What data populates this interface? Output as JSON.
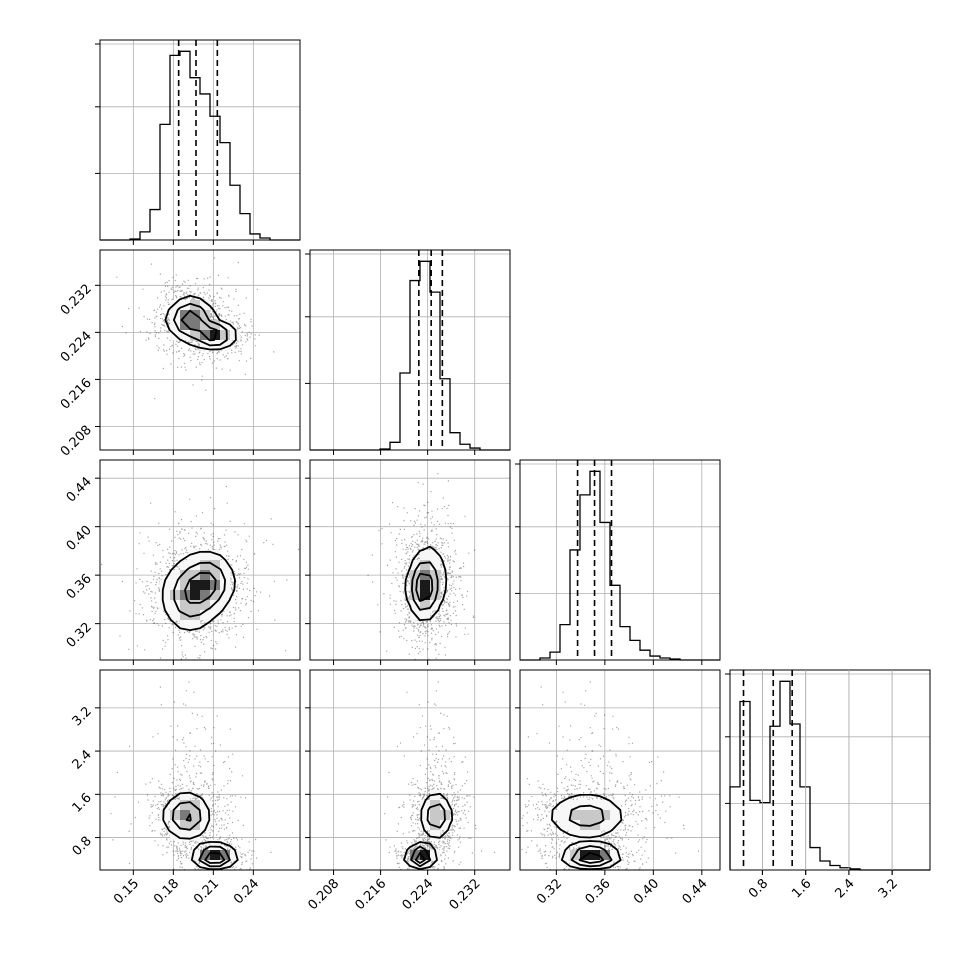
{
  "chart_data": {
    "type": "corner",
    "grid": true,
    "parameters": [
      {
        "range": [
          0.125,
          0.275
        ],
        "ticks": [
          0.15,
          0.18,
          0.21,
          0.24
        ],
        "tick_labels": [
          "0.15",
          "0.18",
          "0.21",
          "0.24"
        ]
      },
      {
        "range": [
          0.204,
          0.238
        ],
        "ticks": [
          0.208,
          0.216,
          0.224,
          0.232
        ],
        "tick_labels": [
          "0.208",
          "0.216",
          "0.224",
          "0.232"
        ]
      },
      {
        "range": [
          0.29,
          0.455
        ],
        "ticks": [
          0.32,
          0.36,
          0.4,
          0.44
        ],
        "tick_labels": [
          "0.32",
          "0.36",
          "0.40",
          "0.44"
        ]
      },
      {
        "range": [
          0.2,
          3.9
        ],
        "ticks": [
          0.8,
          1.6,
          2.4,
          3.2
        ],
        "tick_labels": [
          "0.8",
          "1.6",
          "2.4",
          "3.2"
        ]
      }
    ],
    "histograms": [
      {
        "param": 0,
        "bin_edges": [
          0.125,
          0.1325,
          0.14,
          0.1475,
          0.155,
          0.1625,
          0.17,
          0.1775,
          0.185,
          0.1925,
          0.2,
          0.2075,
          0.215,
          0.2225,
          0.23,
          0.2375,
          0.245,
          0.2525,
          0.26,
          0.2675,
          0.275
        ],
        "counts": [
          0,
          0,
          0,
          0.5,
          4,
          15,
          57,
          91,
          93,
          80,
          72,
          61,
          48,
          27,
          13,
          3,
          1,
          0,
          0,
          0
        ],
        "quantiles": [
          0.184,
          0.197,
          0.213
        ]
      },
      {
        "param": 1,
        "bin_edges": [
          0.204,
          0.2057,
          0.2074,
          0.2091,
          0.2108,
          0.2125,
          0.2142,
          0.2159,
          0.2176,
          0.2193,
          0.221,
          0.2227,
          0.2244,
          0.2261,
          0.2278,
          0.2295,
          0.2312,
          0.2329,
          0.2346,
          0.2363,
          0.238
        ],
        "counts": [
          0,
          0,
          0,
          0,
          0,
          0,
          0,
          0.5,
          4,
          40,
          88,
          98,
          82,
          37,
          9,
          3,
          1,
          0,
          0,
          0
        ],
        "quantiles": [
          0.2225,
          0.2246,
          0.2265
        ]
      },
      {
        "param": 2,
        "bin_edges": [
          0.29,
          0.29825,
          0.3065,
          0.31475,
          0.323,
          0.33125,
          0.3395,
          0.34775,
          0.356,
          0.36425,
          0.3725,
          0.38075,
          0.389,
          0.39725,
          0.4055,
          0.41375,
          0.422,
          0.43025,
          0.4385,
          0.44675,
          0.455
        ],
        "counts": [
          0,
          0,
          1,
          4,
          18,
          56,
          84,
          96,
          70,
          38,
          17,
          10,
          5,
          2,
          1,
          0.5,
          0,
          0,
          0,
          0
        ],
        "quantiles": [
          0.3375,
          0.3515,
          0.3655
        ]
      },
      {
        "param": 3,
        "bin_edges": [
          0.2,
          0.385,
          0.57,
          0.755,
          0.94,
          1.125,
          1.31,
          1.495,
          1.68,
          1.865,
          2.05,
          2.235,
          2.42,
          2.605,
          2.79,
          2.975,
          3.16,
          3.345,
          3.53,
          3.715,
          3.9
        ],
        "counts": [
          37,
          75,
          31,
          30,
          64,
          84,
          65,
          37,
          10,
          4,
          2,
          1,
          0.5,
          0,
          0,
          0,
          0,
          0,
          0,
          0
        ],
        "quantiles": [
          0.45,
          1.0,
          1.35
        ]
      }
    ],
    "pairs": [
      {
        "x_param": 0,
        "y_param": 1,
        "modes": [
          {
            "x": 0.193,
            "y": 0.2262,
            "sx": 0.009,
            "sy": 0.0019,
            "w": 0.65
          },
          {
            "x": 0.211,
            "y": 0.2235,
            "sx": 0.008,
            "sy": 0.0012,
            "w": 0.35
          }
        ]
      },
      {
        "x_param": 0,
        "y_param": 2,
        "modes": [
          {
            "x": 0.192,
            "y": 0.343,
            "sx": 0.011,
            "sy": 0.016,
            "w": 0.55
          },
          {
            "x": 0.207,
            "y": 0.354,
            "sx": 0.01,
            "sy": 0.013,
            "w": 0.45
          }
        ]
      },
      {
        "x_param": 1,
        "y_param": 2,
        "modes": [
          {
            "x": 0.2232,
            "y": 0.349,
            "sx": 0.0013,
            "sy": 0.013,
            "w": 0.6
          },
          {
            "x": 0.2245,
            "y": 0.358,
            "sx": 0.0018,
            "sy": 0.018,
            "w": 0.4
          }
        ]
      },
      {
        "x_param": 0,
        "y_param": 3,
        "modes": [
          {
            "x": 0.19,
            "y": 1.2,
            "sx": 0.009,
            "sy": 0.22,
            "w": 0.6
          },
          {
            "x": 0.211,
            "y": 0.45,
            "sx": 0.008,
            "sy": 0.1,
            "w": 0.4
          }
        ]
      },
      {
        "x_param": 1,
        "y_param": 3,
        "modes": [
          {
            "x": 0.2255,
            "y": 1.2,
            "sx": 0.0014,
            "sy": 0.22,
            "w": 0.6
          },
          {
            "x": 0.2228,
            "y": 0.45,
            "sx": 0.0012,
            "sy": 0.1,
            "w": 0.4
          }
        ]
      },
      {
        "x_param": 2,
        "y_param": 3,
        "modes": [
          {
            "x": 0.345,
            "y": 1.2,
            "sx": 0.017,
            "sy": 0.22,
            "w": 0.6
          },
          {
            "x": 0.349,
            "y": 0.45,
            "sx": 0.012,
            "sy": 0.1,
            "w": 0.4
          }
        ]
      }
    ]
  }
}
